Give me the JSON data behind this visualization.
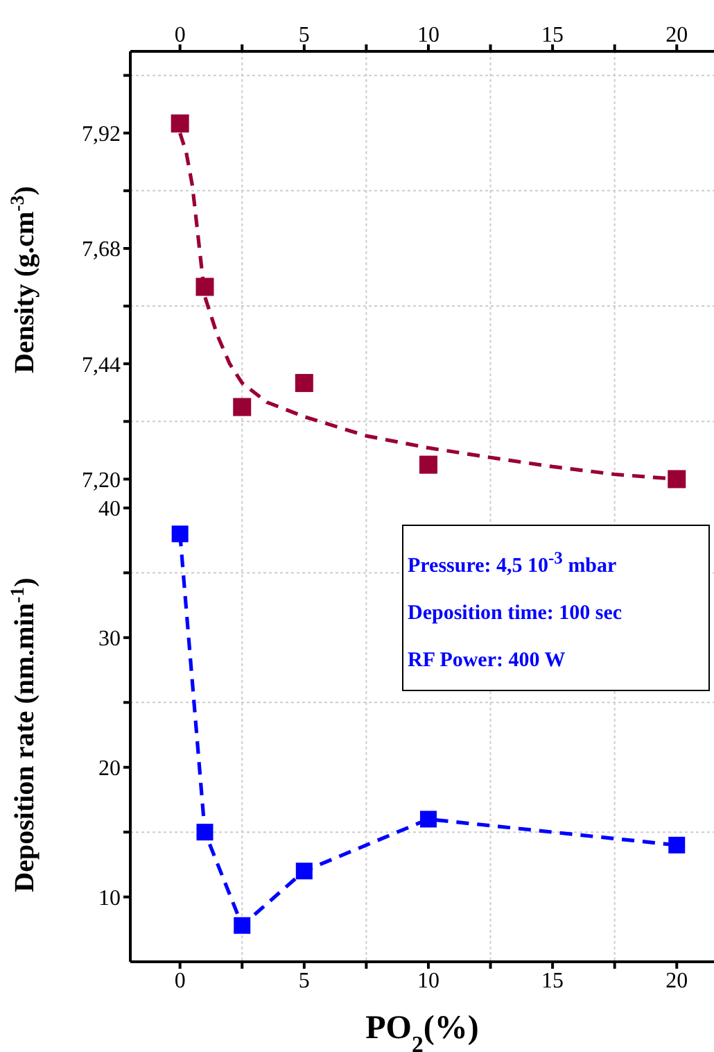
{
  "chart_data": [
    {
      "type": "scatter",
      "ylabel": "Density (g.cm$^{-3}$)",
      "x": [
        0,
        1,
        2.5,
        5,
        10,
        20
      ],
      "xlim": [
        -2,
        21.5
      ],
      "xticks": [
        0,
        {
          "value": 2.5,
          "label": null
        },
        5,
        {
          "value": 7.5,
          "label": null
        },
        10,
        {
          "value": 12.5,
          "label": null
        },
        15,
        {
          "value": 17.5,
          "label": null
        },
        20
      ],
      "ylim": [
        7.14,
        8.09
      ],
      "yticks": [
        {
          "value": 7.2,
          "label": "7,20"
        },
        {
          "value": 7.32,
          "label": null
        },
        {
          "value": 7.44,
          "label": "7,44"
        },
        {
          "value": 7.56,
          "label": null
        },
        {
          "value": 7.68,
          "label": "7,68"
        },
        {
          "value": 7.8,
          "label": null
        },
        {
          "value": 7.92,
          "label": "7,92"
        },
        {
          "value": 8.04,
          "label": null
        }
      ],
      "grid": true,
      "series": [
        {
          "color": "#990033",
          "marker": "square",
          "values": [
            7.94,
            7.6,
            7.35,
            7.4,
            7.23,
            7.2
          ]
        },
        {
          "type": "line",
          "color": "#990033",
          "marker": "none",
          "line_style": "dashed",
          "x": [
            0,
            0.25,
            0.5,
            1,
            1.5,
            2,
            2.5,
            3.5,
            5,
            7.5,
            10,
            12.5,
            15,
            17.5,
            20
          ],
          "values": [
            7.92,
            7.88,
            7.81,
            7.58,
            7.5,
            7.44,
            7.4,
            7.36,
            7.33,
            7.29,
            7.265,
            7.245,
            7.226,
            7.21,
            7.2
          ]
        }
      ]
    },
    {
      "type": "line",
      "xlabel": "PO$_{2}$(%)",
      "ylabel": "Deposition rate (nm.min$^{-1}$)",
      "x": [
        0,
        1,
        2.5,
        5,
        10,
        20
      ],
      "xlim": [
        -2,
        21.5
      ],
      "xticks": [
        0,
        {
          "value": 2.5,
          "label": null
        },
        5,
        {
          "value": 7.5,
          "label": null
        },
        10,
        {
          "value": 12.5,
          "label": null
        },
        15,
        {
          "value": 17.5,
          "label": null
        },
        20
      ],
      "ylim": [
        5,
        40
      ],
      "yticks": [
        10,
        {
          "value": 15,
          "label": null
        },
        20,
        {
          "value": 25,
          "label": null
        },
        30,
        {
          "value": 35,
          "label": null
        },
        40
      ],
      "grid": true,
      "marker": "square",
      "line_style": "dashed",
      "annotations": [
        "Pressure: 4,5 10$^{-3}$ mbar",
        "Deposition time: 100 sec",
        "RF Power: 400 W"
      ],
      "series": [
        {
          "color": "#0000ff",
          "values": [
            38,
            15,
            7.8,
            12,
            16,
            14
          ]
        }
      ]
    }
  ]
}
